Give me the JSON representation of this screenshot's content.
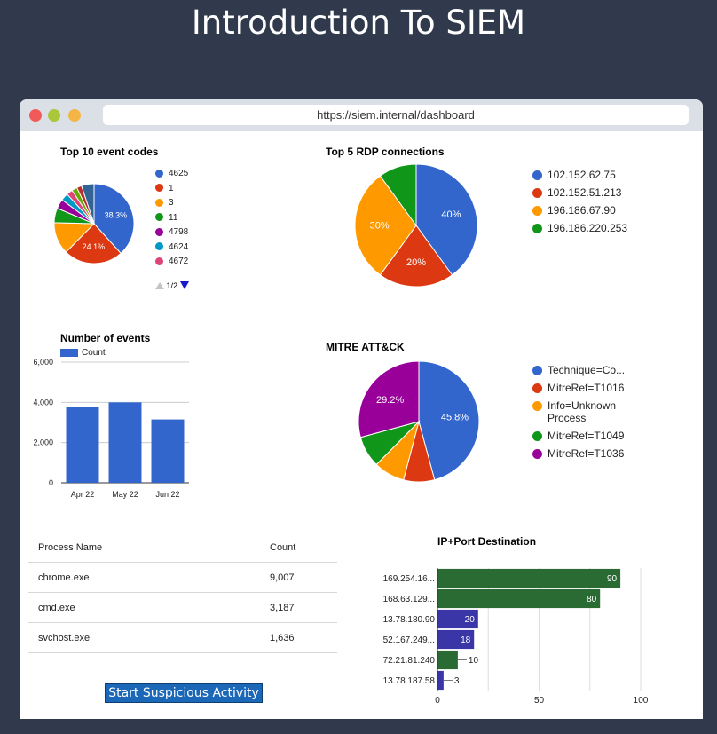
{
  "page": {
    "title": "Introduction To SIEM"
  },
  "browser": {
    "url": "https://siem.internal/dashboard"
  },
  "event_codes": {
    "title": "Top 10 event codes",
    "pager": "1/2",
    "slices": [
      {
        "label": "4625",
        "value": 38.3,
        "color": "#3366cc",
        "show": "38.3%"
      },
      {
        "label": "1",
        "value": 24.1,
        "color": "#dc3912",
        "show": "24.1%"
      },
      {
        "label": "3",
        "value": 13.0,
        "color": "#ff9900",
        "show": ""
      },
      {
        "label": "11",
        "value": 5.9,
        "color": "#109618",
        "show": ""
      },
      {
        "label": "4798",
        "value": 3.9,
        "color": "#990099",
        "show": ""
      },
      {
        "label": "4624",
        "value": 3.0,
        "color": "#0099c6",
        "show": ""
      },
      {
        "label": "4672",
        "value": 2.5,
        "color": "#dd4477",
        "show": ""
      },
      {
        "label": "",
        "value": 2.2,
        "color": "#66aa00",
        "show": ""
      },
      {
        "label": "",
        "value": 2.0,
        "color": "#b82e2e",
        "show": ""
      },
      {
        "label": "",
        "value": 5.1,
        "color": "#316395",
        "show": ""
      }
    ]
  },
  "rdp": {
    "title": "Top 5 RDP connections",
    "slices": [
      {
        "label": "102.152.62.75",
        "value": 40,
        "color": "#3366cc",
        "show": "40%"
      },
      {
        "label": "102.152.51.213",
        "value": 20,
        "color": "#dc3912",
        "show": "20%"
      },
      {
        "label": "196.186.67.90",
        "value": 30,
        "color": "#ff9900",
        "show": "30%"
      },
      {
        "label": "196.186.220.253",
        "value": 10,
        "color": "#109618",
        "show": ""
      }
    ]
  },
  "events_bar": {
    "title": "Number of events",
    "legend": "Count",
    "color": "#3366cc",
    "categories": [
      "Apr 22",
      "May 22",
      "Jun 22"
    ],
    "values": [
      3750,
      4000,
      3150
    ],
    "ylim": [
      0,
      6000
    ],
    "ticks": [
      0,
      2000,
      4000,
      6000
    ],
    "tick_labels": [
      "0",
      "2,000",
      "4,000",
      "6,000"
    ]
  },
  "mitre": {
    "title": "MITRE ATT&CK",
    "slices": [
      {
        "label": "Technique=Co...",
        "value": 45.8,
        "color": "#3366cc",
        "show": "45.8%"
      },
      {
        "label": "MitreRef=T1016",
        "value": 8.3,
        "color": "#dc3912",
        "show": ""
      },
      {
        "label": "Info=Unknown Process",
        "value": 8.3,
        "color": "#ff9900",
        "show": ""
      },
      {
        "label": "MitreRef=T1049",
        "value": 8.4,
        "color": "#109618",
        "show": ""
      },
      {
        "label": "MitreRef=T1036",
        "value": 29.2,
        "color": "#990099",
        "show": "29.2%"
      }
    ]
  },
  "process_table": {
    "headers": [
      "Process Name",
      "Count"
    ],
    "rows": [
      [
        "chrome.exe",
        "9,007"
      ],
      [
        "cmd.exe",
        "3,187"
      ],
      [
        "svchost.exe",
        "1,636"
      ]
    ]
  },
  "ip_port": {
    "title": "IP+Port Destination",
    "categories": [
      "169.254.16...",
      "168.63.129...",
      "13.78.180.90",
      "52.167.249...",
      "72.21.81.240",
      "13.78.187.58"
    ],
    "values": [
      90,
      80,
      20,
      18,
      10,
      3
    ],
    "colors": [
      "#2a6b33",
      "#2a6b33",
      "#3b36a8",
      "#3b36a8",
      "#2a6b33",
      "#3b36a8"
    ],
    "xlim": [
      0,
      100
    ],
    "ticks": [
      0,
      50,
      100
    ],
    "tick_labels": [
      "0",
      "50",
      "100"
    ]
  },
  "button": {
    "label": "Start Suspicious Activity"
  }
}
